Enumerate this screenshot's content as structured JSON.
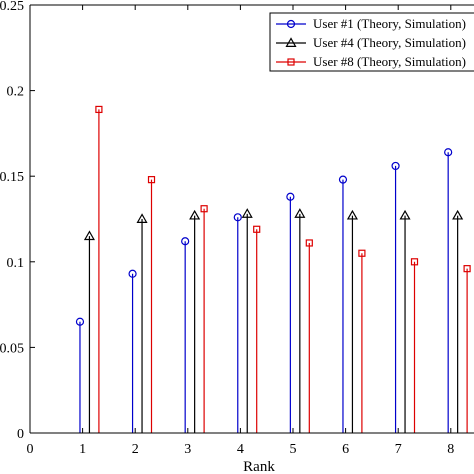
{
  "chart_data": {
    "type": "stem",
    "xlabel": "Rank",
    "ylabel": "",
    "xlim": [
      0,
      8.9
    ],
    "ylim": [
      0,
      0.25
    ],
    "x_ticks": [
      "0",
      "1",
      "2",
      "3",
      "4",
      "5",
      "6",
      "7",
      "8"
    ],
    "y_ticks": [
      "0",
      "0.05",
      "0.1",
      "0.15",
      "0.2",
      "0.25"
    ],
    "y_tick_labels_visible": [
      "0",
      "0.05",
      "0.1",
      "0.15",
      "0.2",
      "0.25"
    ],
    "legend_position": "top-right",
    "series": [
      {
        "name": "User #1 (Theory, Simulation)",
        "color": "#0000cc",
        "marker": "circle",
        "x": [
          1,
          2,
          3,
          4,
          5,
          6,
          7,
          8
        ],
        "values": [
          0.065,
          0.093,
          0.112,
          0.126,
          0.138,
          0.148,
          0.156,
          0.164
        ]
      },
      {
        "name": "User #4 (Theory, Simulation)",
        "color": "#000000",
        "marker": "triangle",
        "x": [
          1,
          2,
          3,
          4,
          5,
          6,
          7,
          8
        ],
        "values": [
          0.115,
          0.125,
          0.127,
          0.128,
          0.128,
          0.127,
          0.127,
          0.127
        ]
      },
      {
        "name": "User #8 (Theory, Simulation)",
        "color": "#dd0000",
        "marker": "square",
        "x": [
          1,
          2,
          3,
          4,
          5,
          6,
          7,
          8
        ],
        "values": [
          0.189,
          0.148,
          0.131,
          0.119,
          0.111,
          0.105,
          0.1,
          0.096
        ]
      }
    ]
  }
}
